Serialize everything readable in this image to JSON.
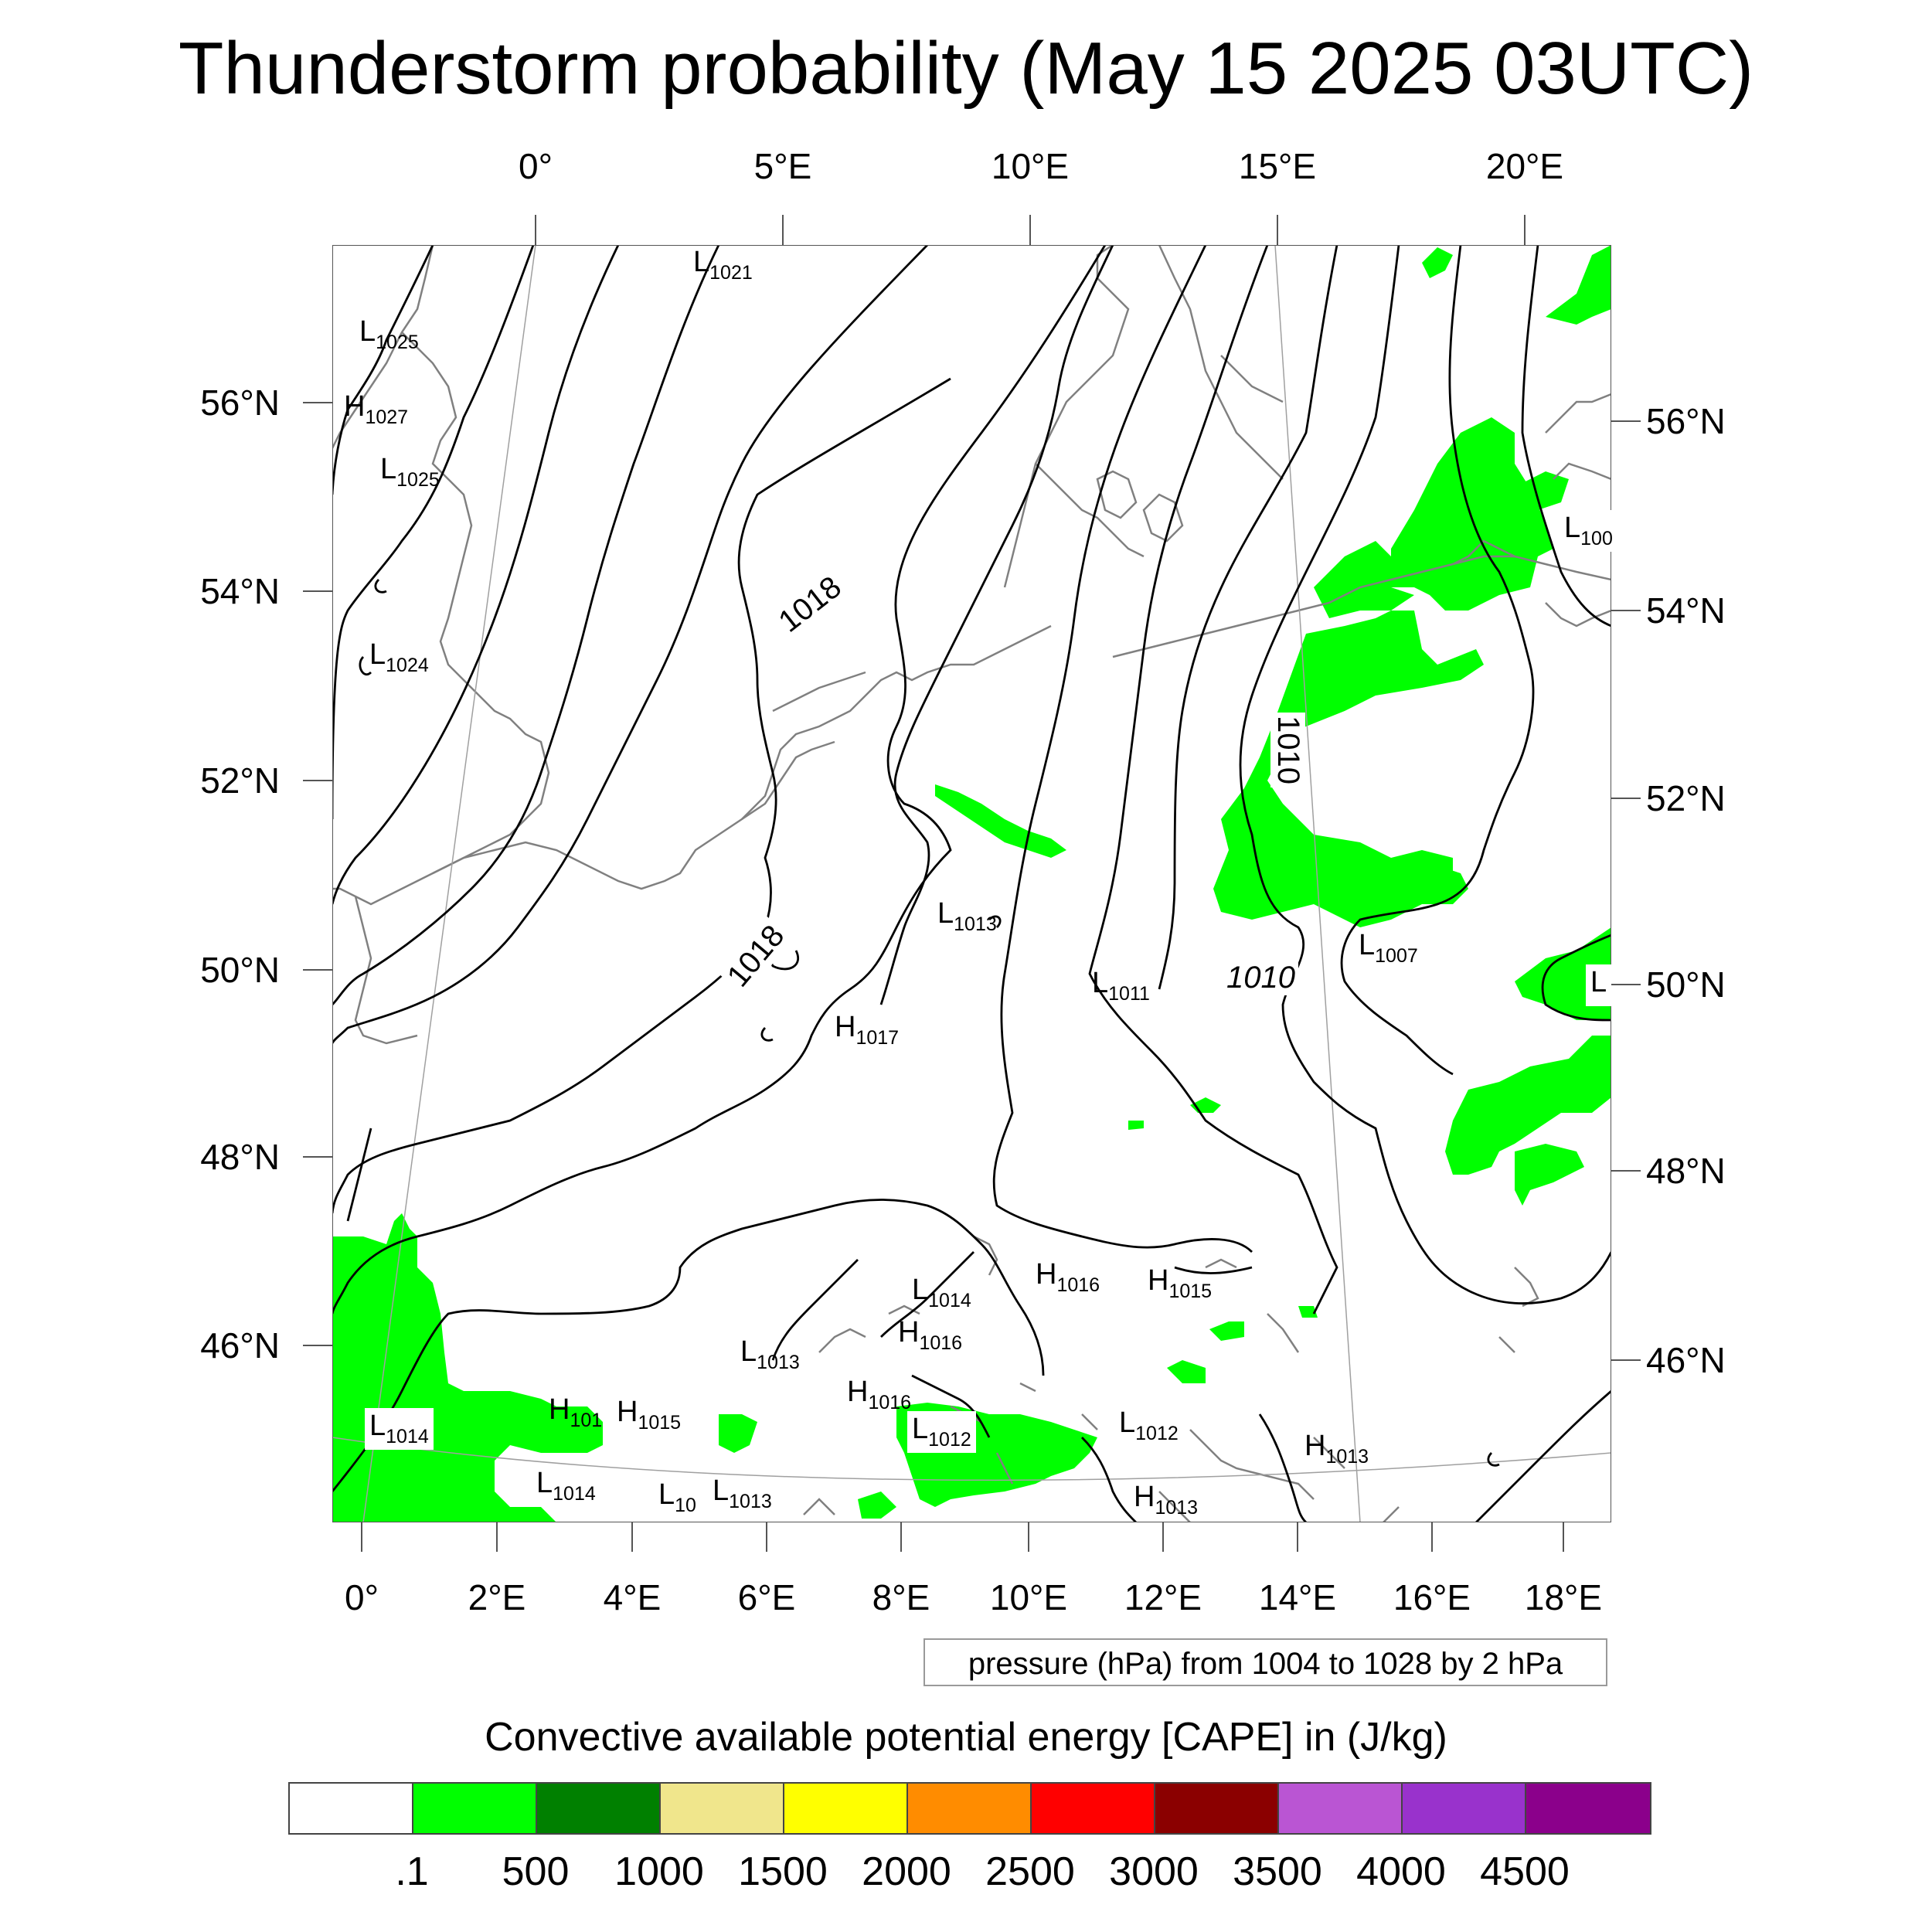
{
  "title": "Thunderstorm probability (May 15 2025 03UTC)",
  "top_lon_labels": [
    "0°",
    "5°E",
    "10°E",
    "15°E",
    "20°E"
  ],
  "bottom_lon_labels": [
    "0°",
    "2°E",
    "4°E",
    "6°E",
    "8°E",
    "10°E",
    "12°E",
    "14°E",
    "16°E",
    "18°E"
  ],
  "left_lat_labels": [
    "56°N",
    "54°N",
    "52°N",
    "50°N",
    "48°N",
    "46°N"
  ],
  "right_lat_labels": [
    "56°N",
    "54°N",
    "52°N",
    "50°N",
    "48°N",
    "46°N"
  ],
  "contour_labels": [
    "1018",
    "1018",
    "1010",
    "1010"
  ],
  "pressure_centers": [
    {
      "type": "L",
      "value": "1021"
    },
    {
      "type": "L",
      "value": "1025"
    },
    {
      "type": "H",
      "value": "1027"
    },
    {
      "type": "L",
      "value": "1025"
    },
    {
      "type": "L",
      "value": "1024"
    },
    {
      "type": "L",
      "value": "1013"
    },
    {
      "type": "H",
      "value": "1017"
    },
    {
      "type": "L",
      "value": "1011"
    },
    {
      "type": "L",
      "value": "1007"
    },
    {
      "type": "L",
      "value": "100"
    },
    {
      "type": "L",
      "value": ""
    },
    {
      "type": "H",
      "value": "1016"
    },
    {
      "type": "H",
      "value": "1015"
    },
    {
      "type": "L",
      "value": "1014"
    },
    {
      "type": "H",
      "value": "1016"
    },
    {
      "type": "L",
      "value": "1013"
    },
    {
      "type": "H",
      "value": "1016"
    },
    {
      "type": "L",
      "value": "1012"
    },
    {
      "type": "L",
      "value": "1012"
    },
    {
      "type": "H",
      "value": "1013"
    },
    {
      "type": "H",
      "value": "1013"
    },
    {
      "type": "L",
      "value": "1014"
    },
    {
      "type": "H",
      "value": "101"
    },
    {
      "type": "H",
      "value": "1015"
    },
    {
      "type": "L",
      "value": "1014"
    },
    {
      "type": "L",
      "value": "10"
    },
    {
      "type": "L",
      "value": "1013"
    }
  ],
  "contour_note": "pressure (hPa) from 1004 to 1028 by 2 hPa",
  "colorbar": {
    "title": "Convective available potential energy [CAPE] in (J/kg)",
    "colors": [
      "#ffffff",
      "#00ff00",
      "#008000",
      "#f0e68c",
      "#ffff00",
      "#ff8c00",
      "#ff0000",
      "#8b0000",
      "#ba55d3",
      "#9932cc",
      "#8b008b"
    ],
    "tick_labels": [
      ".1",
      "500",
      "1000",
      "1500",
      "2000",
      "2500",
      "3000",
      "3500",
      "4000",
      "4500"
    ]
  },
  "colors": {
    "cape_fill": "#00ff00",
    "coastline": "#808080",
    "isobar": "#000000",
    "graticule": "#a0a0a0"
  }
}
